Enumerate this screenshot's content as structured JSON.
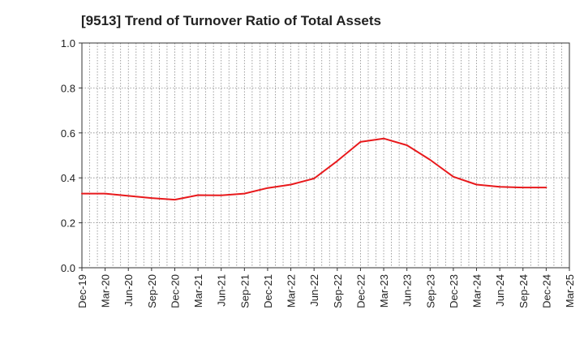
{
  "chart_data": {
    "type": "line",
    "title": "[9513]  Trend of Turnover Ratio of Total Assets",
    "xlabel": "",
    "ylabel": "",
    "ylim": [
      0,
      1.0
    ],
    "y_ticks": [
      "0.0",
      "0.2",
      "0.4",
      "0.6",
      "0.8",
      "1.0"
    ],
    "x_ticks": [
      "Dec-19",
      "Mar-20",
      "Jun-20",
      "Sep-20",
      "Dec-20",
      "Mar-21",
      "Jun-21",
      "Sep-21",
      "Dec-21",
      "Mar-22",
      "Jun-22",
      "Sep-22",
      "Dec-22",
      "Mar-23",
      "Jun-23",
      "Sep-23",
      "Dec-23",
      "Mar-24",
      "Jun-24",
      "Sep-24",
      "Dec-24",
      "Mar-25"
    ],
    "grid": true,
    "legend": "none",
    "series": [
      {
        "color": "#e8191c",
        "x": [
          "Dec-19",
          "Mar-20",
          "Jun-20",
          "Sep-20",
          "Dec-20",
          "Mar-21",
          "Jun-21",
          "Sep-21",
          "Dec-21",
          "Mar-22",
          "Jun-22",
          "Sep-22",
          "Dec-22",
          "Mar-23",
          "Jun-23",
          "Sep-23",
          "Dec-23",
          "Mar-24",
          "Jun-24",
          "Sep-24",
          "Dec-24"
        ],
        "values": [
          0.33,
          0.33,
          0.32,
          0.31,
          0.303,
          0.323,
          0.322,
          0.33,
          0.355,
          0.37,
          0.397,
          0.475,
          0.56,
          0.575,
          0.545,
          0.48,
          0.405,
          0.37,
          0.36,
          0.357,
          0.357
        ]
      }
    ]
  }
}
